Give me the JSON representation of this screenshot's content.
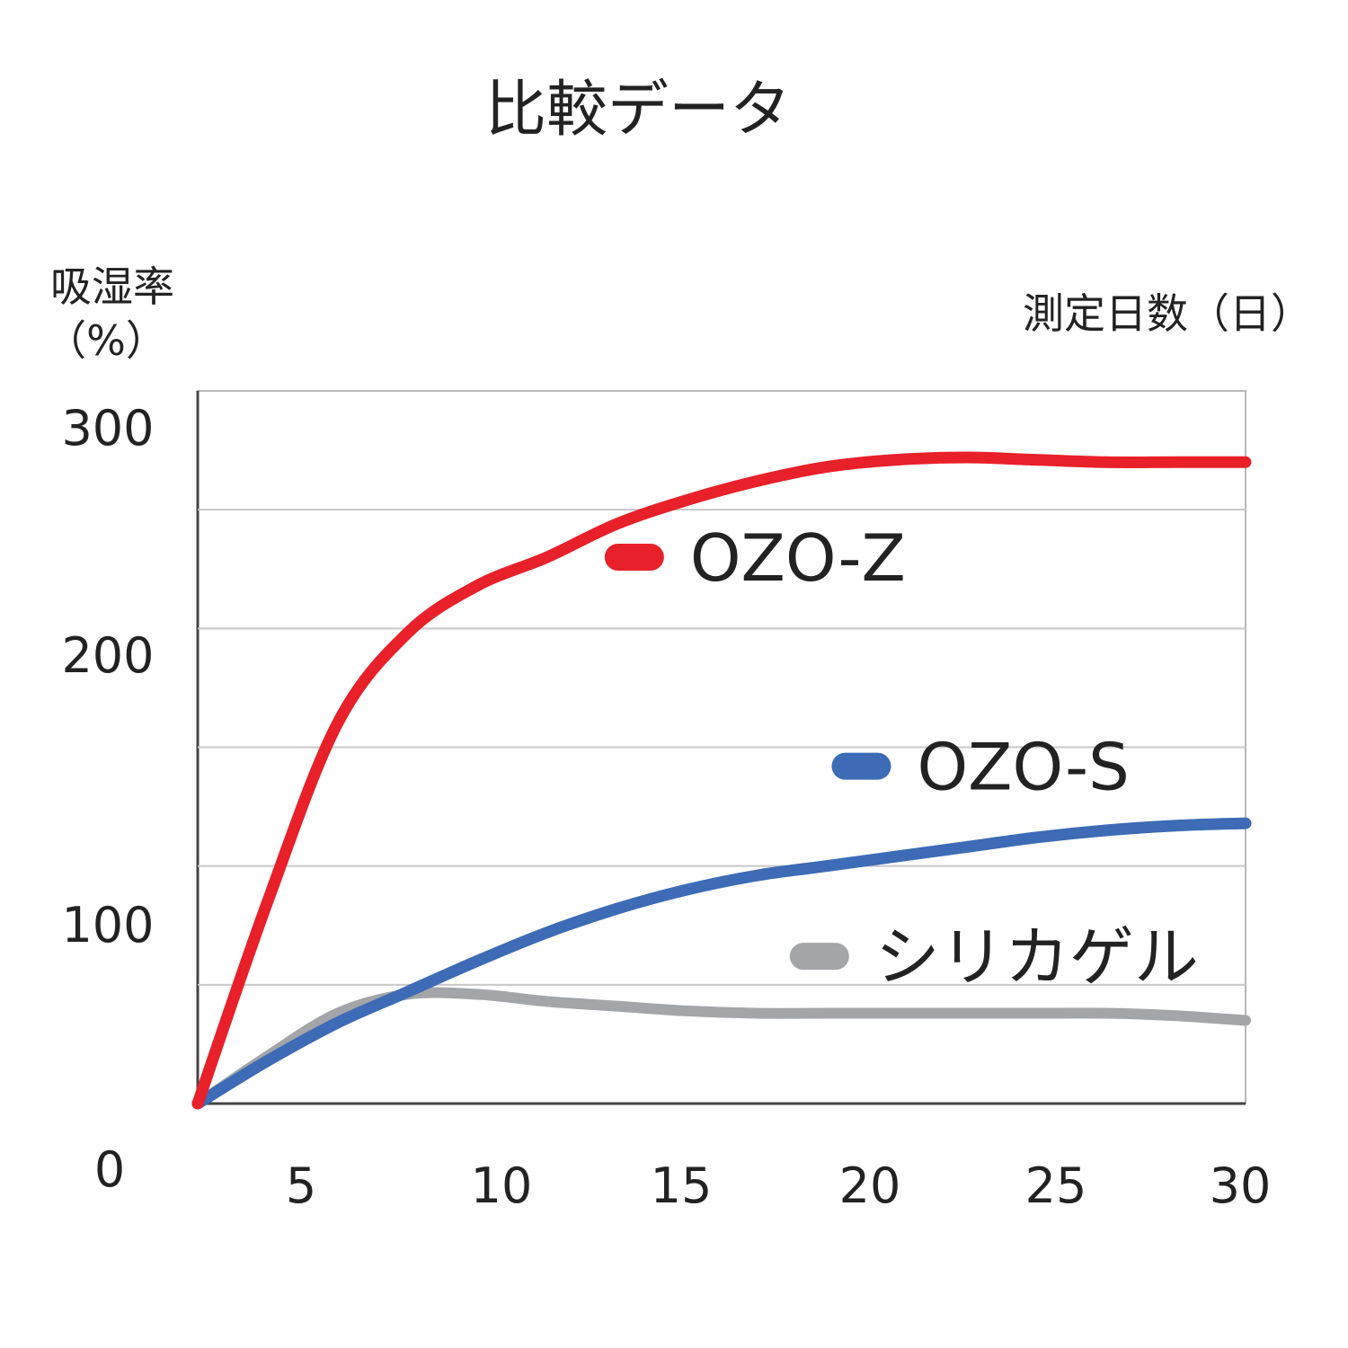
{
  "chart_data": {
    "type": "line",
    "title": "比較データ",
    "ylabel_line1": "吸湿率",
    "ylabel_line2": "（%）",
    "xlabel": "測定日数（日）",
    "xlim": [
      0,
      30
    ],
    "ylim": [
      0,
      300
    ],
    "x_ticks": [
      {
        "value": 5,
        "label": "5"
      },
      {
        "value": 10,
        "label": "10"
      },
      {
        "value": 15,
        "label": "15"
      },
      {
        "value": 20,
        "label": "20"
      },
      {
        "value": 25,
        "label": "25"
      },
      {
        "value": 30,
        "label": "30"
      }
    ],
    "y_ticks": [
      {
        "value": 300,
        "label": "300"
      },
      {
        "value": 200,
        "label": "200"
      },
      {
        "value": 100,
        "label": "100"
      },
      {
        "value": 0,
        "label": "0"
      }
    ],
    "grid": true,
    "series": [
      {
        "name": "OZO-Z",
        "color": "#e8202a",
        "points": [
          [
            0,
            0
          ],
          [
            2,
            85
          ],
          [
            4,
            160
          ],
          [
            6,
            198
          ],
          [
            8,
            218
          ],
          [
            10,
            230
          ],
          [
            12,
            244
          ],
          [
            14,
            254
          ],
          [
            16,
            262
          ],
          [
            18,
            268
          ],
          [
            20,
            271
          ],
          [
            22,
            272
          ],
          [
            24,
            271
          ],
          [
            26,
            270
          ],
          [
            28,
            270
          ],
          [
            30,
            270
          ]
        ]
      },
      {
        "name": "OZO-S",
        "color": "#3d6bb5",
        "points": [
          [
            0,
            0
          ],
          [
            2,
            18
          ],
          [
            4,
            34
          ],
          [
            6,
            47
          ],
          [
            8,
            60
          ],
          [
            10,
            72
          ],
          [
            12,
            82
          ],
          [
            14,
            90
          ],
          [
            16,
            96
          ],
          [
            18,
            100
          ],
          [
            20,
            104
          ],
          [
            22,
            108
          ],
          [
            24,
            112
          ],
          [
            26,
            115
          ],
          [
            28,
            117
          ],
          [
            30,
            118
          ]
        ]
      },
      {
        "name": "シリカゲル",
        "color": "#a3a5a8",
        "points": [
          [
            0,
            0
          ],
          [
            2,
            20
          ],
          [
            4,
            38
          ],
          [
            6,
            46
          ],
          [
            8,
            46
          ],
          [
            10,
            43
          ],
          [
            12,
            41
          ],
          [
            14,
            39
          ],
          [
            16,
            38
          ],
          [
            18,
            38
          ],
          [
            20,
            38
          ],
          [
            22,
            38
          ],
          [
            24,
            38
          ],
          [
            26,
            38
          ],
          [
            28,
            37
          ],
          [
            30,
            35
          ]
        ]
      }
    ],
    "legend": [
      {
        "name": "OZO-Z",
        "color": "#e8202a",
        "anchor_x": 12.5,
        "anchor_y": 230
      },
      {
        "name": "OZO-S",
        "color": "#3d6bb5",
        "anchor_x": 19.0,
        "anchor_y": 142
      },
      {
        "name": "シリカゲル",
        "color": "#a3a5a8",
        "anchor_x": 17.8,
        "anchor_y": 62
      }
    ]
  }
}
